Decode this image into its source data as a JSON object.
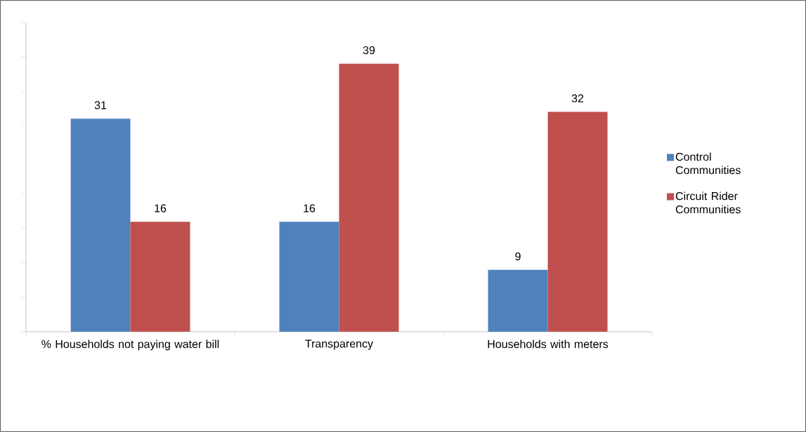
{
  "chart_data": {
    "type": "bar",
    "categories": [
      "% Households not paying water bill",
      "Transparency",
      "Households with meters"
    ],
    "series": [
      {
        "name": "Control Communities",
        "color": "#4f81bd",
        "values": [
          31,
          16,
          9
        ]
      },
      {
        "name": "Circuit Rider Communities",
        "color": "#c0504d",
        "values": [
          16,
          39,
          32
        ]
      }
    ],
    "ylim": [
      0,
      45
    ],
    "yticks": [
      {
        "value": 0,
        "label": null
      },
      {
        "value": 5,
        "label": null
      },
      {
        "value": 10,
        "label": null
      },
      {
        "value": 15,
        "label": null
      },
      {
        "value": 20,
        "label": null
      },
      {
        "value": 25,
        "label": null
      },
      {
        "value": 30,
        "label": null
      },
      {
        "value": 35,
        "label": null
      },
      {
        "value": 40,
        "label": null
      },
      {
        "value": 45,
        "label": null
      }
    ],
    "data_labels": true,
    "legend": "right",
    "grid": false
  }
}
